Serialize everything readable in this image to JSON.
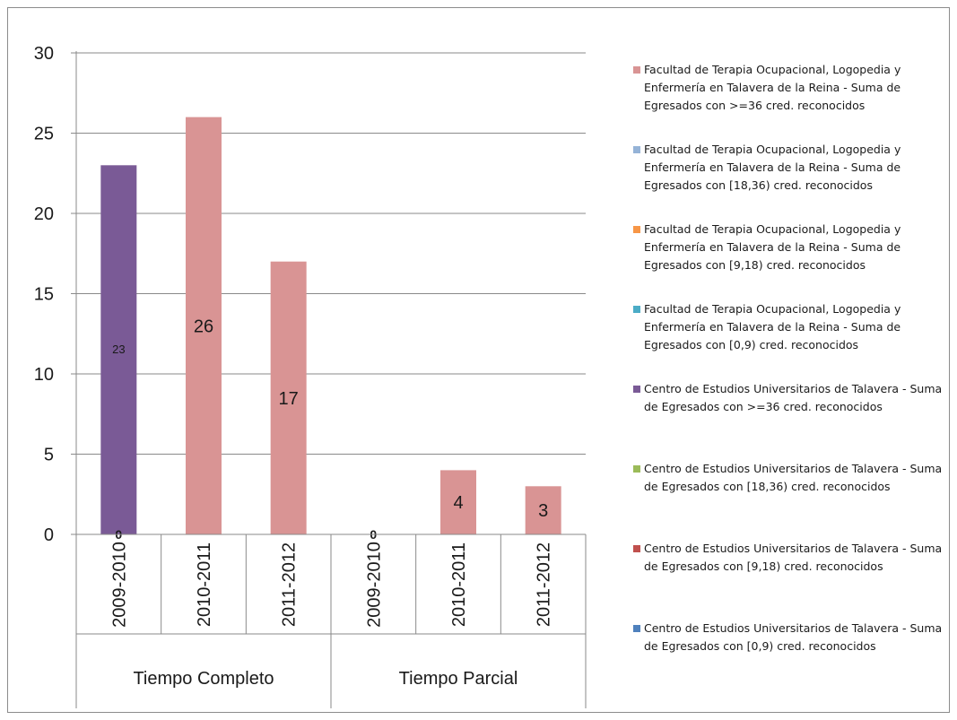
{
  "chart_data": {
    "type": "bar",
    "ylim": [
      0,
      30
    ],
    "yticks": [
      0,
      5,
      10,
      15,
      20,
      25,
      30
    ],
    "groups": [
      {
        "name": "Tiempo Completo",
        "categories": [
          "2009-2010",
          "2010-2011",
          "2011-2012"
        ]
      },
      {
        "name": "Tiempo Parcial",
        "categories": [
          "2009-2010",
          "2010-2011",
          "2011-2012"
        ]
      }
    ],
    "bars": [
      {
        "group": 0,
        "category": "2009-2010",
        "value": 23,
        "color": "#7a5a96",
        "label": "23",
        "zero_label": "0"
      },
      {
        "group": 0,
        "category": "2010-2011",
        "value": 26,
        "color": "#d99494",
        "label": "26",
        "zero_label": ""
      },
      {
        "group": 0,
        "category": "2011-2012",
        "value": 17,
        "color": "#d99494",
        "label": "17",
        "zero_label": ""
      },
      {
        "group": 1,
        "category": "2009-2010",
        "value": 0,
        "color": "#d99494",
        "label": "",
        "zero_label": "0"
      },
      {
        "group": 1,
        "category": "2010-2011",
        "value": 4,
        "color": "#d99494",
        "label": "4",
        "zero_label": ""
      },
      {
        "group": 1,
        "category": "2011-2012",
        "value": 3,
        "color": "#d99494",
        "label": "3",
        "zero_label": ""
      }
    ],
    "grid": true,
    "legend_position": "right",
    "legend": [
      {
        "label": "Facultad de Terapia Ocupacional, Logopedia y Enfermería en Talavera de la Reina - Suma de Egresados con >=36 cred. reconocidos",
        "color": "#d99494"
      },
      {
        "label": "Facultad de Terapia Ocupacional, Logopedia y Enfermería en Talavera de la Reina - Suma de Egresados con [18,36) cred. reconocidos",
        "color": "#95b3d7"
      },
      {
        "label": "Facultad de Terapia Ocupacional, Logopedia y Enfermería en Talavera de la Reina - Suma de Egresados con [9,18) cred. reconocidos",
        "color": "#f79646"
      },
      {
        "label": "Facultad de Terapia Ocupacional, Logopedia y Enfermería en Talavera de la Reina - Suma de Egresados con [0,9) cred. reconocidos",
        "color": "#4bacc6"
      },
      {
        "label": "Centro de Estudios Universitarios de Talavera - Suma de Egresados con >=36 cred. reconocidos",
        "color": "#7a5a96"
      },
      {
        "label": "Centro de Estudios Universitarios de Talavera - Suma de Egresados con [18,36) cred. reconocidos",
        "color": "#9bbb59"
      },
      {
        "label": "Centro de Estudios Universitarios de Talavera - Suma de Egresados con [9,18) cred. reconocidos",
        "color": "#c0504d"
      },
      {
        "label": "Centro de Estudios Universitarios de Talavera - Suma de Egresados con [0,9) cred. reconocidos",
        "color": "#4f81bd"
      }
    ]
  }
}
